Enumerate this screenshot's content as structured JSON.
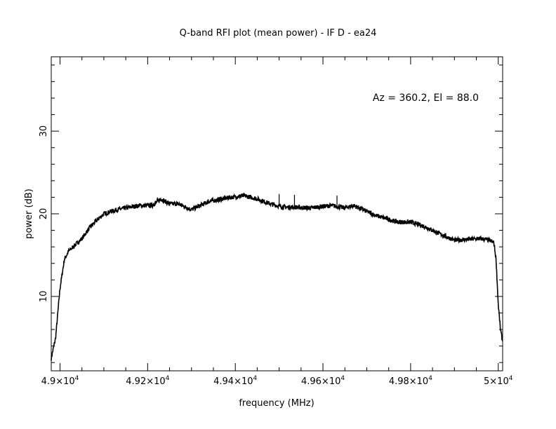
{
  "chart_data": {
    "type": "line",
    "title": "Q-band RFI plot (mean power) - IF D - ea24",
    "xlabel": "frequency (MHz)",
    "ylabel": "power (dB)",
    "annotation": "Az = 360.2, El = 88.0",
    "xlim": [
      48980,
      50010
    ],
    "ylim": [
      1,
      39
    ],
    "x_ticks": [
      {
        "value": 49000,
        "mant": "4.9",
        "exp": "4"
      },
      {
        "value": 49200,
        "mant": "4.92",
        "exp": "4"
      },
      {
        "value": 49400,
        "mant": "4.94",
        "exp": "4"
      },
      {
        "value": 49600,
        "mant": "4.96",
        "exp": "4"
      },
      {
        "value": 49800,
        "mant": "4.98",
        "exp": "4"
      },
      {
        "value": 50000,
        "mant": "5",
        "exp": "4"
      }
    ],
    "y_ticks": [
      {
        "value": 10,
        "label": "10"
      },
      {
        "value": 20,
        "label": "20"
      },
      {
        "value": 30,
        "label": "30"
      }
    ],
    "series": [
      {
        "color": "#000000",
        "x": [
          48980,
          48990,
          49000,
          49010,
          49020,
          49030,
          49050,
          49070,
          49100,
          49130,
          49150,
          49180,
          49210,
          49230,
          49250,
          49270,
          49300,
          49320,
          49340,
          49360,
          49390,
          49420,
          49450,
          49480,
          49510,
          49540,
          49570,
          49600,
          49620,
          49650,
          49670,
          49700,
          49720,
          49740,
          49770,
          49800,
          49830,
          49850,
          49870,
          49900,
          49930,
          49960,
          49980,
          49990,
          49995,
          50000,
          50005,
          50010
        ],
        "y": [
          2.5,
          5.0,
          11.0,
          14.5,
          15.5,
          16.0,
          17.0,
          18.5,
          20.0,
          20.5,
          20.7,
          21.0,
          21.0,
          21.8,
          21.2,
          21.2,
          20.5,
          21.0,
          21.5,
          21.7,
          22.0,
          22.2,
          21.8,
          21.2,
          20.8,
          20.8,
          20.7,
          20.9,
          21.0,
          20.7,
          21.0,
          20.3,
          19.8,
          19.5,
          19.0,
          19.0,
          18.5,
          18.0,
          17.5,
          16.8,
          16.9,
          17.0,
          16.8,
          16.5,
          14.5,
          9.0,
          6.0,
          4.5
        ],
        "spikes": [
          {
            "x": 49500,
            "y": 22.4
          },
          {
            "x": 49535,
            "y": 22.3
          },
          {
            "x": 49632,
            "y": 22.2
          }
        ]
      }
    ]
  }
}
